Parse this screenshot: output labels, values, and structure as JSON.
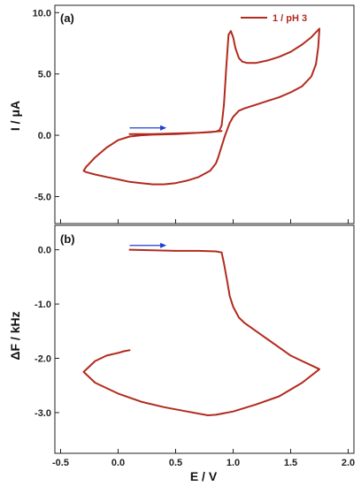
{
  "chart_data": [
    {
      "panel": "(a)",
      "type": "line",
      "ylabel": "I / μA",
      "yticks": [
        "10.0",
        "5.0",
        "0.0",
        "-5.0"
      ],
      "yticks_values": [
        10,
        5,
        0,
        -5
      ],
      "ylim": [
        -7.2,
        10.6
      ],
      "xlim": [
        -0.55,
        2.05
      ],
      "legend": {
        "label": "1 / pH 3",
        "position": "top-right"
      },
      "annotations": [
        {
          "type": "arrow",
          "color": "#1f3fd0",
          "from": [
            0.1,
            0.6
          ],
          "to": [
            0.42,
            0.6
          ]
        }
      ],
      "series": [
        {
          "name": "1 / pH 3",
          "color": "#b22a1e",
          "x": [
            0.1,
            0.3,
            0.5,
            0.7,
            0.8,
            0.85,
            0.88,
            0.9,
            0.92,
            0.94,
            0.96,
            0.98,
            1.0,
            1.02,
            1.05,
            1.08,
            1.12,
            1.2,
            1.3,
            1.4,
            1.5,
            1.6,
            1.68,
            1.72,
            1.75,
            1.74,
            1.72,
            1.68,
            1.6,
            1.5,
            1.4,
            1.3,
            1.2,
            1.1,
            1.05,
            1.0,
            0.97,
            0.95,
            0.93,
            0.91,
            0.89,
            0.87,
            0.85,
            0.8,
            0.7,
            0.6,
            0.5,
            0.4,
            0.3,
            0.2,
            0.1,
            0.0,
            -0.1,
            -0.2,
            -0.28,
            -0.3,
            -0.28,
            -0.2,
            -0.1,
            0.0,
            0.1,
            0.2,
            0.3,
            0.5,
            0.7,
            0.85,
            0.9
          ],
          "y": [
            0.1,
            0.1,
            0.15,
            0.2,
            0.25,
            0.3,
            0.4,
            0.8,
            2.5,
            5.5,
            8.2,
            8.5,
            8.0,
            7.1,
            6.3,
            6.0,
            5.9,
            5.9,
            6.1,
            6.4,
            6.8,
            7.4,
            8.0,
            8.4,
            8.7,
            7.2,
            5.8,
            4.8,
            4.0,
            3.5,
            3.1,
            2.8,
            2.5,
            2.2,
            2.0,
            1.5,
            1.0,
            0.5,
            0.0,
            -0.6,
            -1.2,
            -1.8,
            -2.3,
            -2.9,
            -3.4,
            -3.7,
            -3.9,
            -4.0,
            -4.0,
            -3.9,
            -3.8,
            -3.6,
            -3.4,
            -3.2,
            -3.0,
            -2.9,
            -2.6,
            -1.8,
            -1.0,
            -0.4,
            -0.1,
            0.0,
            0.05,
            0.1,
            0.2,
            0.3,
            0.35
          ]
        }
      ]
    },
    {
      "panel": "(b)",
      "type": "line",
      "xlabel": "E / V",
      "ylabel": "ΔF / kHz",
      "xticks": [
        "-0.5",
        "0.0",
        "0.5",
        "1.0",
        "1.5",
        "2.0"
      ],
      "xticks_values": [
        -0.5,
        0.0,
        0.5,
        1.0,
        1.5,
        2.0
      ],
      "yticks": [
        "0.0",
        "-1.0",
        "-2.0",
        "-3.0"
      ],
      "yticks_values": [
        0,
        -1,
        -2,
        -3
      ],
      "ylim": [
        -3.75,
        0.45
      ],
      "xlim": [
        -0.55,
        2.05
      ],
      "annotations": [
        {
          "type": "arrow",
          "color": "#1f3fd0",
          "from": [
            0.1,
            0.08
          ],
          "to": [
            0.42,
            0.08
          ]
        }
      ],
      "series": [
        {
          "name": "",
          "color": "#b22a1e",
          "x": [
            0.1,
            0.3,
            0.5,
            0.7,
            0.85,
            0.9,
            0.92,
            0.95,
            0.97,
            1.0,
            1.05,
            1.1,
            1.2,
            1.3,
            1.4,
            1.5,
            1.6,
            1.7,
            1.75,
            1.6,
            1.4,
            1.2,
            1.0,
            0.85,
            0.78,
            0.6,
            0.4,
            0.2,
            0.0,
            -0.2,
            -0.3,
            -0.2,
            -0.1,
            0.0,
            0.05,
            0.1
          ],
          "y": [
            0.0,
            -0.01,
            -0.02,
            -0.02,
            -0.03,
            -0.05,
            -0.25,
            -0.6,
            -0.85,
            -1.05,
            -1.25,
            -1.35,
            -1.5,
            -1.65,
            -1.8,
            -1.95,
            -2.05,
            -2.15,
            -2.2,
            -2.45,
            -2.7,
            -2.85,
            -2.98,
            -3.04,
            -3.05,
            -2.98,
            -2.9,
            -2.8,
            -2.65,
            -2.45,
            -2.25,
            -2.05,
            -1.95,
            -1.9,
            -1.87,
            -1.85
          ]
        }
      ]
    }
  ]
}
